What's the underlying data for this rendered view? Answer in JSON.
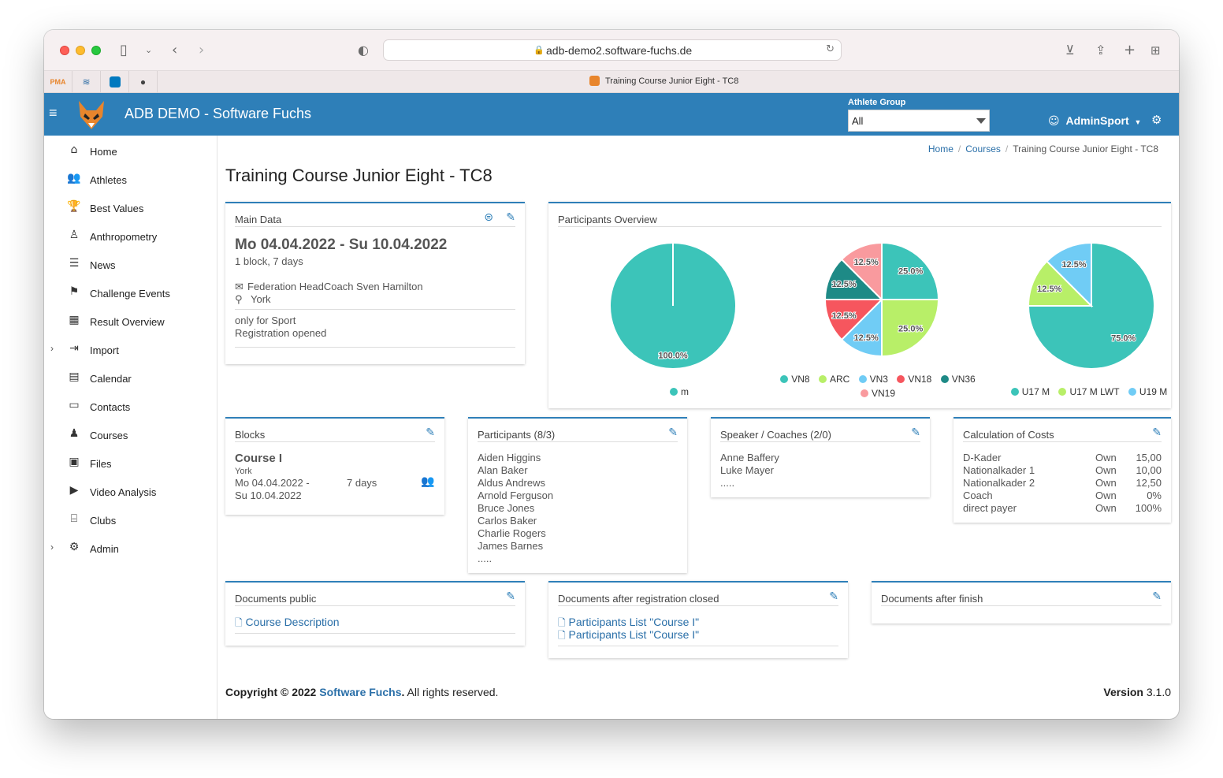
{
  "browser": {
    "url": "adb-demo2.software-fuchs.de",
    "tab_title": "Training Course Junior Eight - TC8"
  },
  "header": {
    "brand": "ADB DEMO - Software Fuchs",
    "athlete_group_label": "Athlete Group",
    "athlete_group_value": "All",
    "user": "AdminSport",
    "accent_color": "#2e7fb8"
  },
  "sidebar": {
    "items": [
      {
        "label": "Home",
        "icon": "home-icon"
      },
      {
        "label": "Athletes",
        "icon": "users-icon"
      },
      {
        "label": "Best Values",
        "icon": "trophy-icon"
      },
      {
        "label": "Anthropometry",
        "icon": "person-icon"
      },
      {
        "label": "News",
        "icon": "list-icon"
      },
      {
        "label": "Challenge Events",
        "icon": "flag-icon"
      },
      {
        "label": "Result Overview",
        "icon": "table-icon"
      },
      {
        "label": "Import",
        "icon": "import-icon"
      },
      {
        "label": "Calendar",
        "icon": "calendar-icon"
      },
      {
        "label": "Contacts",
        "icon": "address-card-icon"
      },
      {
        "label": "Courses",
        "icon": "teacher-icon"
      },
      {
        "label": "Files",
        "icon": "files-icon"
      },
      {
        "label": "Video Analysis",
        "icon": "video-icon"
      },
      {
        "label": "Clubs",
        "icon": "bank-icon"
      },
      {
        "label": "Admin",
        "icon": "cogs-icon"
      }
    ]
  },
  "breadcrumb": {
    "home": "Home",
    "courses": "Courses",
    "current": "Training Course Junior Eight - TC8"
  },
  "page_title": "Training Course Junior Eight - TC8",
  "main_data": {
    "title": "Main Data",
    "dates": "Mo 04.04.2022 - Su 10.04.2022",
    "duration": "1 block, 7 days",
    "organizer": "Federation HeadCoach Sven Hamilton",
    "location": "York",
    "access": "only for Sport",
    "registration": "Registration opened"
  },
  "participants_overview": {
    "title": "Participants Overview"
  },
  "chart_data": [
    {
      "type": "pie",
      "labels": [
        "m"
      ],
      "values": [
        100.0
      ],
      "colors": [
        "#3cc4b9"
      ]
    },
    {
      "type": "pie",
      "labels": [
        "VN8",
        "ARC",
        "VN3",
        "VN18",
        "VN36",
        "VN19"
      ],
      "values": [
        25.0,
        25.0,
        12.5,
        12.5,
        12.5,
        12.5
      ],
      "colors": [
        "#3cc4b9",
        "#b8ef68",
        "#70ccf5",
        "#f6565e",
        "#1e8a86",
        "#f99a9e"
      ]
    },
    {
      "type": "pie",
      "labels": [
        "U17 M",
        "U17 M LWT",
        "U19 M"
      ],
      "values": [
        75.0,
        12.5,
        12.5
      ],
      "colors": [
        "#3cc4b9",
        "#b8ef68",
        "#70ccf5"
      ]
    }
  ],
  "blocks": {
    "title": "Blocks",
    "name": "Course I",
    "location": "York",
    "dates_1": "Mo 04.04.2022 -",
    "dates_2": "Su 10.04.2022",
    "days": "7 days"
  },
  "participants": {
    "title": "Participants (8/3)",
    "names": [
      "Aiden Higgins",
      "Alan Baker",
      "Aldus Andrews",
      "Arnold Ferguson",
      "Bruce Jones",
      "Carlos Baker",
      "Charlie Rogers",
      "James Barnes",
      "....."
    ]
  },
  "coaches": {
    "title": "Speaker / Coaches (2/0)",
    "names": [
      "Anne Baffery",
      "Luke Mayer",
      "....."
    ]
  },
  "costs": {
    "title": "Calculation of Costs",
    "rows": [
      {
        "name": "D-Kader",
        "type": "Own",
        "value": "15,00"
      },
      {
        "name": "Nationalkader 1",
        "type": "Own",
        "value": "10,00"
      },
      {
        "name": "Nationalkader 2",
        "type": "Own",
        "value": "12,50"
      },
      {
        "name": "Coach",
        "type": "Own",
        "value": "0%"
      },
      {
        "name": "direct payer",
        "type": "Own",
        "value": "100%"
      }
    ]
  },
  "docs_public": {
    "title": "Documents public",
    "items": [
      "Course Description"
    ]
  },
  "docs_closed": {
    "title": "Documents after registration closed",
    "items": [
      "Participants List \"Course I\"",
      "Participants List \"Course I\""
    ]
  },
  "docs_finish": {
    "title": "Documents after finish"
  },
  "footer": {
    "copyright_pre": "Copyright © 2022 ",
    "company": "Software Fuchs",
    "copyright_post": ". All rights reserved.",
    "version_label": "Version",
    "version": "3.1.0"
  }
}
